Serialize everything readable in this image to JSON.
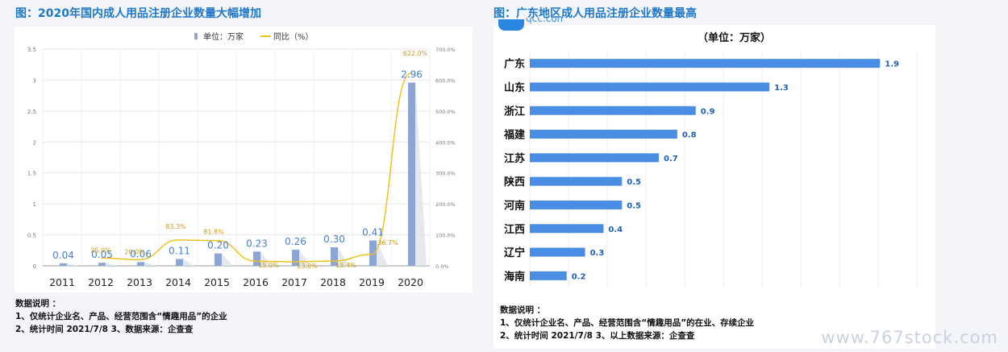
{
  "left": {
    "title": "图：2020年国内成人用品注册企业数量大幅增加",
    "legend_bar": "单位：万家",
    "legend_line": "同比（%）",
    "notes": [
      "数据说明 ：",
      "1、仅统计企业名、产品、经营范围含“情趣用品”的企业",
      "2、统计时间 2021/7/8     3、数据来源：企查查"
    ]
  },
  "right": {
    "title": "图：广东地区成人用品注册企业数量最高",
    "logo_text": "qcc.com",
    "unit": "（单位：万家）",
    "notes": [
      "数据说明 ：",
      "1、仅统计企业名、产品、经营范围含“情趣用品”的在业、存续企业",
      "2、统计时间 2021/7/8      3、以上数据来源：企查查"
    ]
  },
  "watermark": "www.767stock.com",
  "chart_data": [
    {
      "type": "bar",
      "title": "图：2020年国内成人用品注册企业数量大幅增加",
      "categories": [
        "2011",
        "2012",
        "2013",
        "2014",
        "2015",
        "2016",
        "2017",
        "2018",
        "2019",
        "2020"
      ],
      "series": [
        {
          "name": "单位：万家",
          "values": [
            0.04,
            0.05,
            0.06,
            0.11,
            0.2,
            0.23,
            0.26,
            0.3,
            0.41,
            2.96
          ],
          "labels": [
            "0.04",
            "0.05",
            "0.06",
            "0.11",
            "0.20",
            "0.23",
            "0.26",
            "0.30",
            "0.41",
            "2.96"
          ],
          "axis": "left",
          "type": "bar"
        },
        {
          "name": "同比（%）",
          "values": [
            null,
            25.0,
            20.0,
            83.3,
            81.8,
            15.0,
            13.0,
            15.4,
            36.7,
            622.0
          ],
          "labels": [
            "",
            "25.0%",
            "20.0%",
            "83.3%",
            "81.8%",
            "15.0%",
            "13.0%",
            "15.4%",
            "36.7%",
            "622.0%"
          ],
          "axis": "right",
          "type": "line"
        }
      ],
      "ylim": [
        0,
        3.5
      ],
      "y_ticks": [
        "0",
        "0.5",
        "1",
        "1.5",
        "2",
        "2.5",
        "3",
        "3.5"
      ],
      "y_tick_values": [
        0,
        0.5,
        1,
        1.5,
        2,
        2.5,
        3,
        3.5
      ],
      "y2lim": [
        0,
        700
      ],
      "y2_ticks": [
        "0.0%",
        "100.0%",
        "200.0%",
        "300.0%",
        "400.0%",
        "500.0%",
        "600.0%",
        "700.0%"
      ],
      "y2_tick_values": [
        0,
        100,
        200,
        300,
        400,
        500,
        600,
        700
      ],
      "grid": true,
      "legend_position": "top",
      "colors": {
        "bar": "#8ea5d4",
        "line": "#f0c21e",
        "bar_label": "#4a7fc8",
        "line_label": "#c89a12"
      }
    },
    {
      "type": "bar",
      "orientation": "horizontal",
      "title": "图：广东地区成人用品注册企业数量最高",
      "ylabel": "（单位：万家）",
      "categories": [
        "广东",
        "山东",
        "浙江",
        "福建",
        "江苏",
        "陕西",
        "河南",
        "江西",
        "辽宁",
        "海南"
      ],
      "values": [
        1.9,
        1.3,
        0.9,
        0.8,
        0.7,
        0.5,
        0.5,
        0.4,
        0.3,
        0.2
      ],
      "labels": [
        "1.9",
        "1.3",
        "0.9",
        "0.8",
        "0.7",
        "0.5",
        "0.5",
        "0.4",
        "0.3",
        "0.2"
      ],
      "xlim": [
        0,
        2.1
      ],
      "grid": true,
      "colors": {
        "bar": "#4a8de5",
        "label": "#1f5fbf"
      }
    }
  ]
}
